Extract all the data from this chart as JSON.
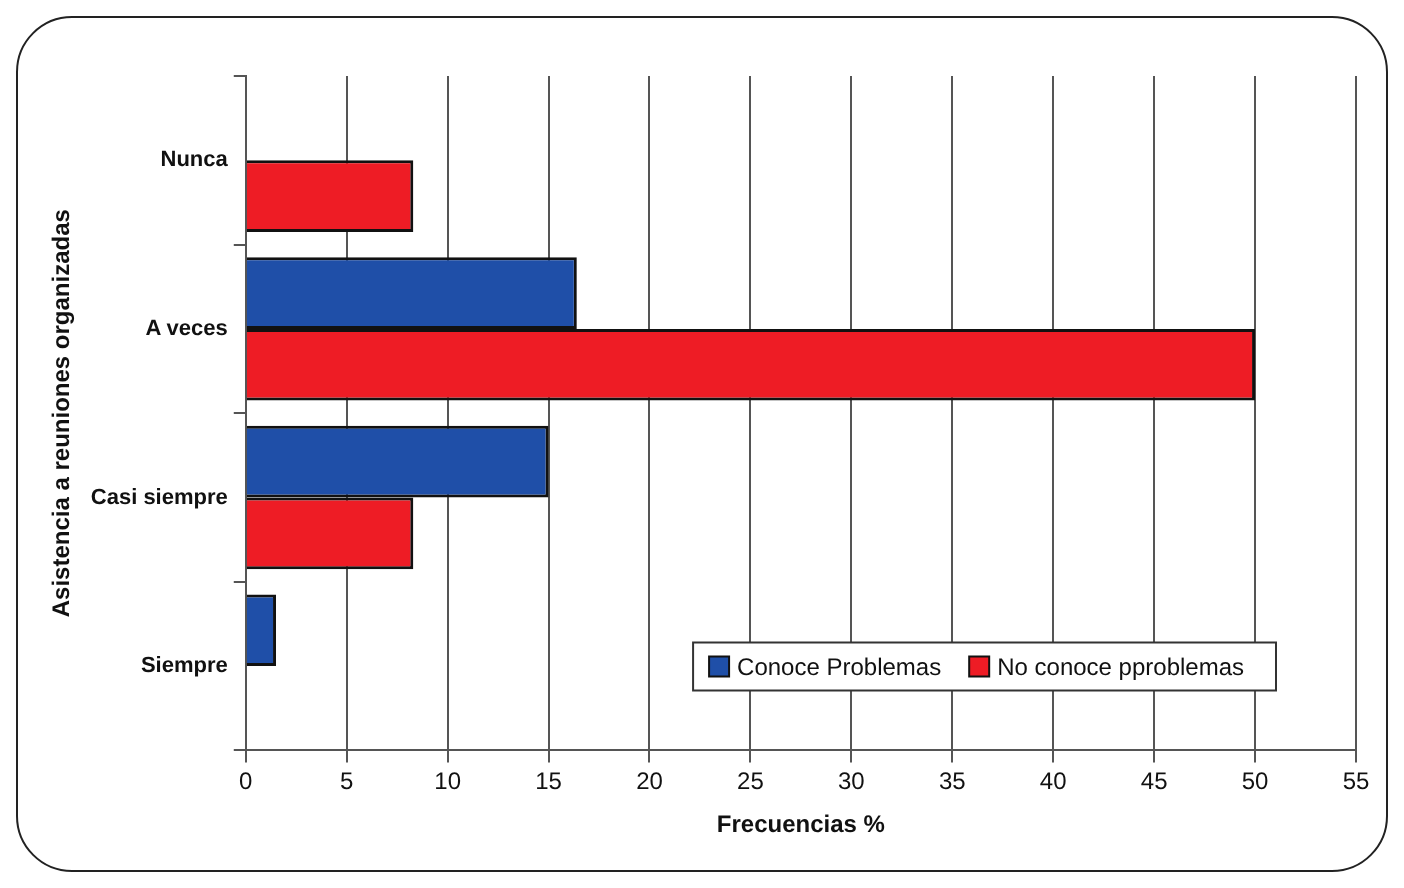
{
  "chart_data": {
    "type": "bar",
    "orientation": "horizontal",
    "xlabel": "Frecuencias %",
    "ylabel": "Asistencia a reuniones organizadas",
    "categories": [
      "Nunca",
      "A veces",
      "Casi siempre",
      "Siempre"
    ],
    "series": [
      {
        "name": "Conoce Problemas",
        "color": "#1f4fa8",
        "values": [
          0,
          16.4,
          15,
          1.5
        ]
      },
      {
        "name": "No conoce pproblemas",
        "color": "#ee1c25",
        "values": [
          8.3,
          50,
          8.3,
          0
        ]
      }
    ],
    "xlim": [
      0,
      55
    ],
    "xticks": [
      0,
      5,
      10,
      15,
      20,
      25,
      30,
      35,
      40,
      45,
      50,
      55
    ],
    "grid": "x",
    "legend": "bottom right"
  }
}
